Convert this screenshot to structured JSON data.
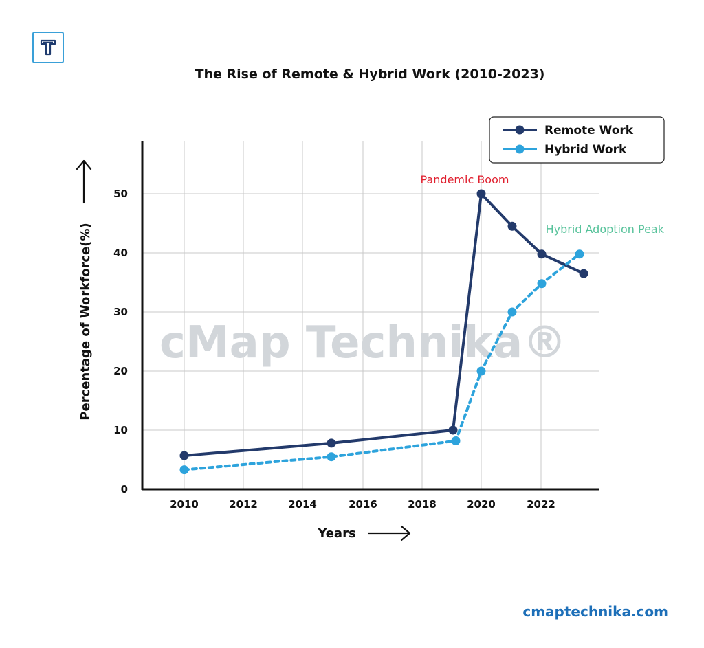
{
  "branding": {
    "logo_icon": "t-monogram-logo-icon",
    "watermark": "cMap Technika®",
    "website": "cmaptechnika.com"
  },
  "colors": {
    "remote": "#233a6b",
    "hybrid": "#2da3dc",
    "pandemic_label": "#e0202f",
    "hybrid_peak_label": "#56c29a",
    "grid": "#c9c9c9",
    "axis": "#111111",
    "watermark": "#d2d6da"
  },
  "chart_data": {
    "type": "line",
    "title": "The Rise of Remote & Hybrid Work (2010-2023)",
    "xlabel": "Years",
    "ylabel": "Percentage of Workforce(%)",
    "x_ticks": [
      "2010",
      "2012",
      "2014",
      "2016",
      "2018",
      "2020",
      "2022"
    ],
    "y_ticks": [
      "0",
      "10",
      "20",
      "30",
      "40",
      "50"
    ],
    "ylim": [
      0,
      58
    ],
    "grid": true,
    "legend_position": "top-right",
    "series": [
      {
        "name": "Remote Work",
        "style": "solid",
        "points": [
          {
            "x": 2010,
            "y": 5.7
          },
          {
            "x": 2014.5,
            "y": 7.8
          },
          {
            "x": 2018.9,
            "y": 10.0
          },
          {
            "x": 2020,
            "y": 50.0
          },
          {
            "x": 2021,
            "y": 44.5
          },
          {
            "x": 2022,
            "y": 39.8
          },
          {
            "x": 2023.4,
            "y": 36.5
          }
        ]
      },
      {
        "name": "Hybrid Work",
        "style": "dotted",
        "points": [
          {
            "x": 2010,
            "y": 3.3
          },
          {
            "x": 2014.5,
            "y": 5.5
          },
          {
            "x": 2019,
            "y": 8.2
          },
          {
            "x": 2020,
            "y": 20.0
          },
          {
            "x": 2021,
            "y": 30.0
          },
          {
            "x": 2022,
            "y": 34.8
          },
          {
            "x": 2023.2,
            "y": 39.8
          }
        ]
      }
    ],
    "annotations": [
      {
        "text": "Pandemic Boom",
        "series": "Remote Work",
        "point_index": 3
      },
      {
        "text": "Hybrid Adoption Peak",
        "series": "Hybrid Work",
        "point_index": 6
      }
    ]
  }
}
